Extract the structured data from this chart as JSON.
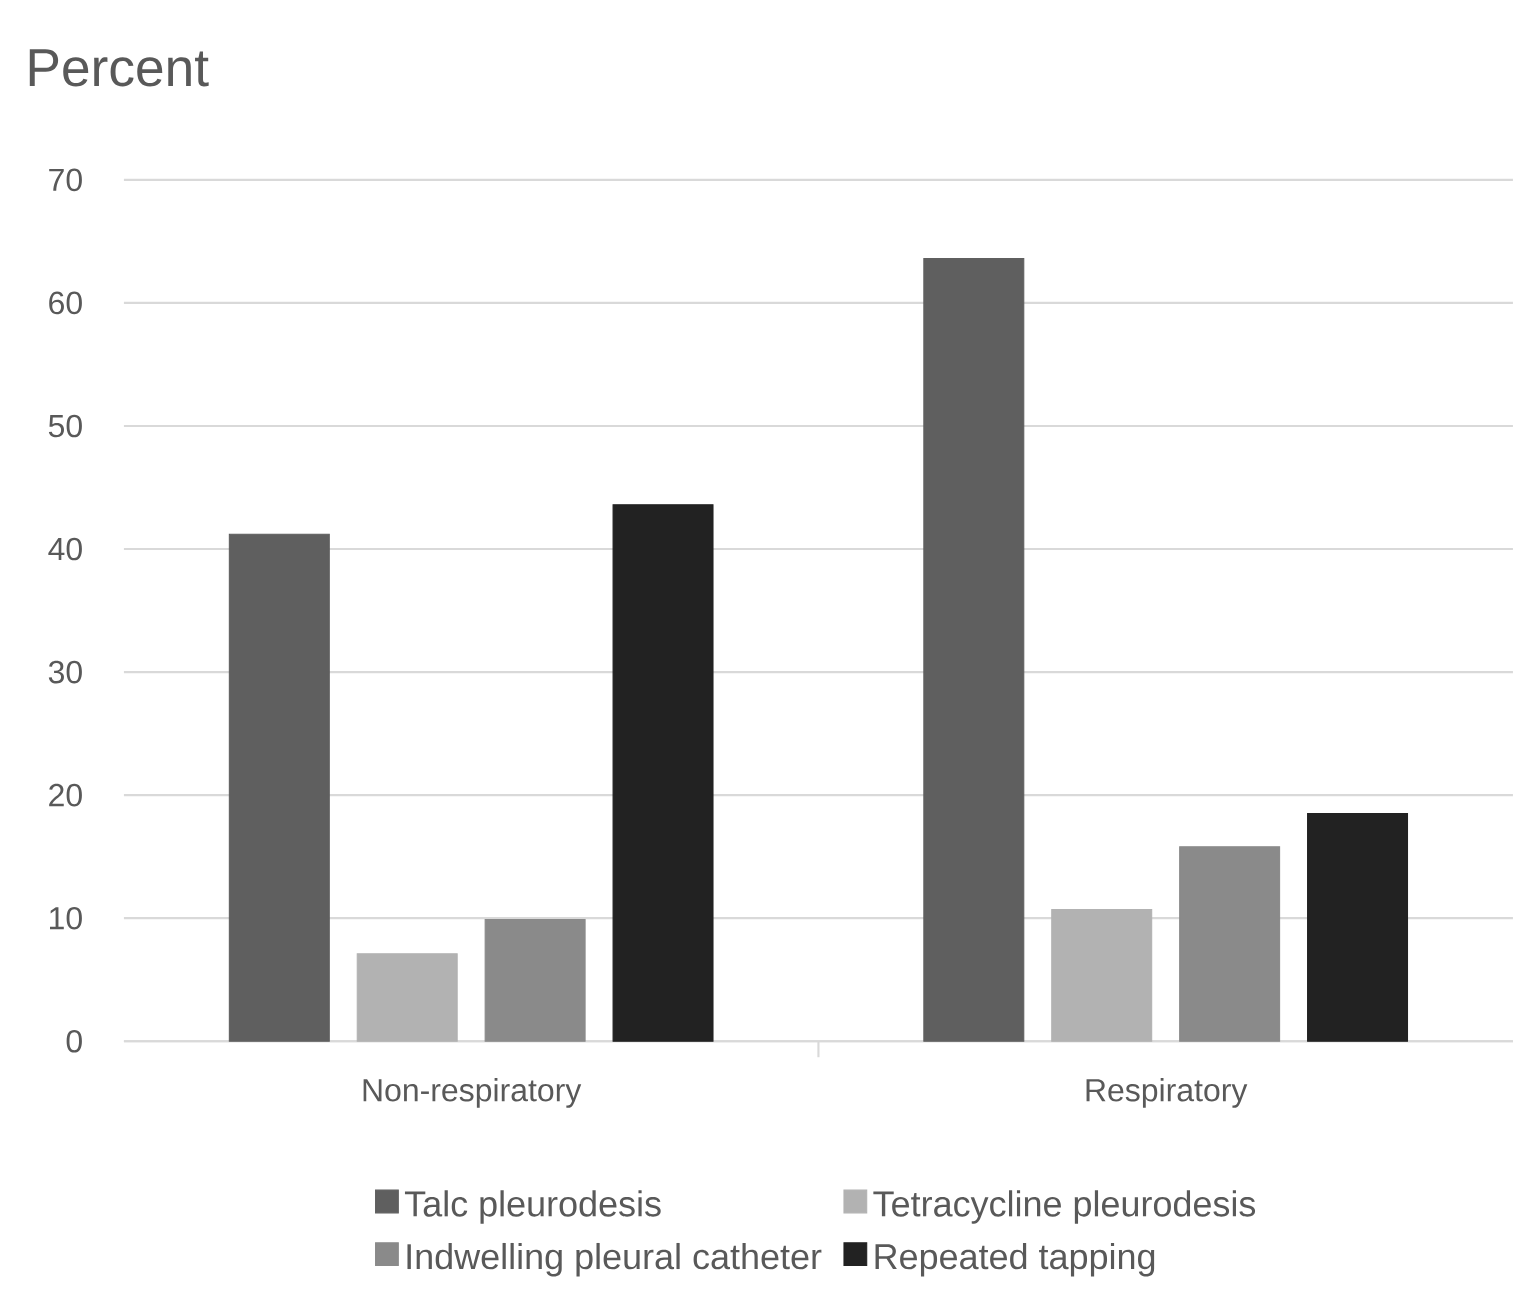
{
  "chart_data": {
    "type": "bar",
    "ylabel": "Percent",
    "categories": [
      "Non-respiratory",
      "Respiratory"
    ],
    "series": [
      {
        "name": "Talc pleurodesis",
        "color": "#5f5f5f",
        "values": [
          41.2,
          63.6
        ]
      },
      {
        "name": "Tetracycline pleurodesis",
        "color": "#b2b2b2",
        "values": [
          7.1,
          10.7
        ]
      },
      {
        "name": "Indwelling pleural catheter",
        "color": "#8a8a8a",
        "values": [
          9.9,
          15.8
        ]
      },
      {
        "name": "Repeated tapping",
        "color": "#222222",
        "values": [
          43.6,
          18.5
        ]
      }
    ],
    "ylim": [
      0,
      70
    ],
    "yticks": [
      0,
      10,
      20,
      30,
      40,
      50,
      60,
      70
    ],
    "grid": "y",
    "legend": "bottom"
  }
}
